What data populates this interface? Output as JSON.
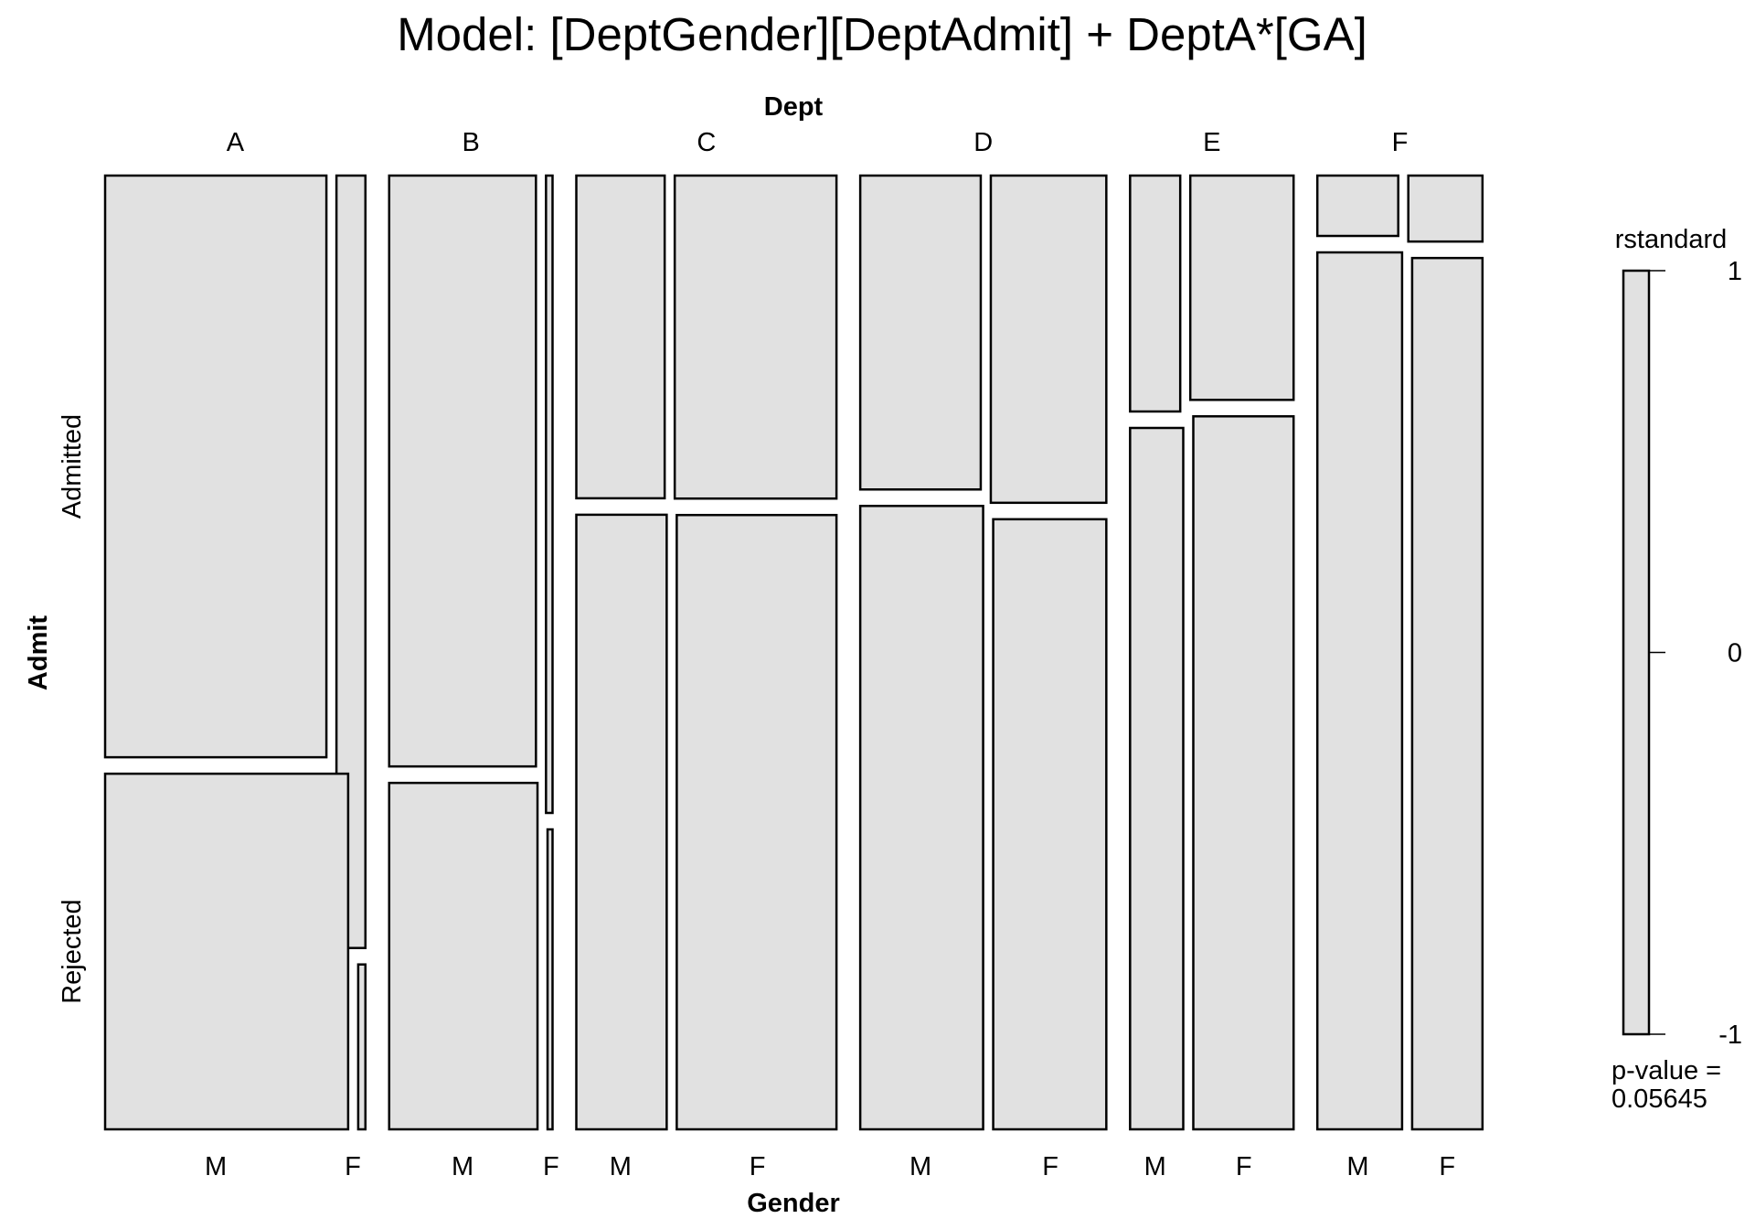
{
  "chart_data": {
    "type": "mosaic",
    "title": "Model: [DeptGender][DeptAdmit] + DeptA*[GA]",
    "top_variable": "Dept",
    "bottom_variable": "Gender",
    "left_variable": "Admit",
    "dept_levels": [
      "A",
      "B",
      "C",
      "D",
      "E",
      "F"
    ],
    "gender_levels": [
      "M",
      "F"
    ],
    "admit_levels": [
      "Admitted",
      "Rejected"
    ],
    "dept_proportions": [
      0.2068,
      0.1298,
      0.2067,
      0.1955,
      0.1299,
      0.1312
    ],
    "male_share_by_dept": [
      0.8843,
      0.9573,
      0.3533,
      0.5106,
      0.3268,
      0.5217
    ],
    "admitted_share": {
      "A": {
        "M": 0.6206,
        "F": 0.8241
      },
      "B": {
        "M": 0.6304,
        "F": 0.68
      },
      "C": {
        "M": 0.3443,
        "F": 0.3446
      },
      "D": {
        "M": 0.3349,
        "F": 0.3491
      },
      "E": {
        "M": 0.2517,
        "F": 0.2393
      },
      "F": {
        "M": 0.0644,
        "F": 0.0704
      }
    },
    "fill_color": "#e1e1e1",
    "legend": {
      "title": "rstandard",
      "ticks": [
        "1",
        "0",
        "-1"
      ],
      "tick_values": [
        1,
        0,
        -1
      ],
      "range": [
        -1,
        1
      ],
      "pvalue_label": "p-value =",
      "pvalue": "0.05645"
    }
  }
}
